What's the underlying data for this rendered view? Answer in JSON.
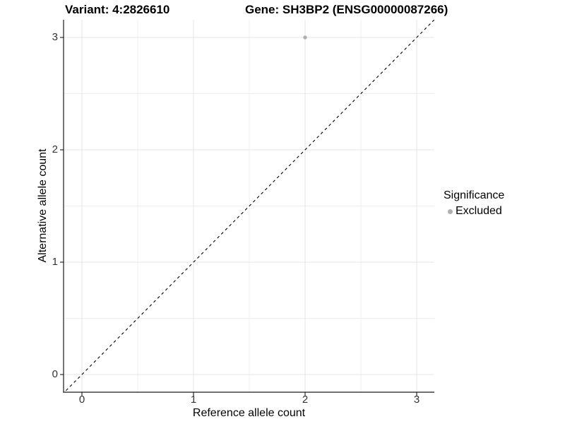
{
  "chart_data": {
    "type": "scatter",
    "title_left": "Variant: 4:2826610",
    "title_right": "Gene: SH3BP2 (ENSG00000087266)",
    "xlabel": "Reference allele count",
    "ylabel": "Alternative allele count",
    "xlim": [
      0,
      3
    ],
    "ylim": [
      0,
      3
    ],
    "x_ticks": [
      0,
      1,
      2,
      3
    ],
    "y_ticks": [
      0,
      1,
      2,
      3
    ],
    "grid": "major and minor gridlines on",
    "colors": {
      "major_grid": "#e4e4e4",
      "minor_grid": "#efefef",
      "axis_line": "#1a1a1a",
      "reference_line": "#000000",
      "excluded_point": "#b0b0b0"
    },
    "reference_line": {
      "kind": "abline",
      "slope": 1,
      "intercept": 0,
      "style": "dashed"
    },
    "series": [
      {
        "name": "Excluded",
        "color": "#b0b0b0",
        "points": [
          {
            "x": 2,
            "y": 3
          }
        ]
      }
    ],
    "legend": {
      "title": "Significance",
      "position": "right",
      "entries": [
        {
          "label": "Excluded",
          "color": "#b0b0b0"
        }
      ]
    }
  }
}
